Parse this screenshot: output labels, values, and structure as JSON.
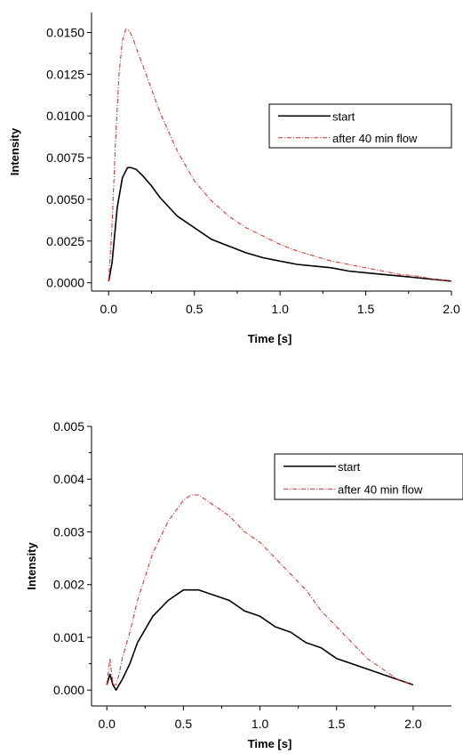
{
  "chart_data": [
    {
      "type": "line",
      "title": "",
      "xlabel": "Time [s]",
      "ylabel": "Intensity",
      "xlim": [
        -0.1,
        2.0
      ],
      "ylim": [
        -0.0005,
        0.0162
      ],
      "x_ticks": [
        "0.0",
        "0.5",
        "1.0",
        "1.5",
        "2.0"
      ],
      "y_ticks": [
        "0.0000",
        "0.0025",
        "0.0050",
        "0.0075",
        "0.0100",
        "0.0125",
        "0.0150"
      ],
      "grid": false,
      "legend_position": "top-right",
      "series": [
        {
          "name": "start",
          "color": "#000000",
          "line_style": "solid",
          "x": [
            0.0,
            0.02,
            0.05,
            0.08,
            0.11,
            0.13,
            0.16,
            0.2,
            0.25,
            0.3,
            0.4,
            0.5,
            0.6,
            0.7,
            0.8,
            0.9,
            1.0,
            1.1,
            1.2,
            1.3,
            1.4,
            1.5,
            1.6,
            1.7,
            1.8,
            1.9,
            2.0
          ],
          "y": [
            0.0001,
            0.0012,
            0.0045,
            0.0063,
            0.0069,
            0.0069,
            0.0068,
            0.0064,
            0.0058,
            0.0051,
            0.004,
            0.0033,
            0.0026,
            0.0022,
            0.0018,
            0.0015,
            0.0013,
            0.0011,
            0.001,
            0.0009,
            0.0007,
            0.0006,
            0.0005,
            0.0004,
            0.0003,
            0.0002,
            0.0001
          ]
        },
        {
          "name": "after 40 min flow",
          "color": "#e3221c",
          "line_style": "dash-dot",
          "x": [
            0.0,
            0.02,
            0.04,
            0.06,
            0.08,
            0.1,
            0.12,
            0.14,
            0.17,
            0.2,
            0.25,
            0.3,
            0.4,
            0.5,
            0.6,
            0.7,
            0.8,
            0.9,
            1.0,
            1.1,
            1.2,
            1.3,
            1.4,
            1.5,
            1.6,
            1.7,
            1.8,
            1.9,
            2.0
          ],
          "y": [
            0.0001,
            0.0035,
            0.0085,
            0.0125,
            0.0145,
            0.0152,
            0.0151,
            0.0147,
            0.0138,
            0.013,
            0.0116,
            0.0102,
            0.0079,
            0.0061,
            0.0049,
            0.004,
            0.0033,
            0.0028,
            0.0023,
            0.0019,
            0.0016,
            0.0013,
            0.0011,
            0.0009,
            0.0007,
            0.0005,
            0.0004,
            0.0002,
            0.0001
          ]
        }
      ]
    },
    {
      "type": "line",
      "title": "",
      "xlabel": "Time [s]",
      "ylabel": "Intensity",
      "xlim": [
        -0.1,
        2.25
      ],
      "ylim": [
        -0.0003,
        0.005
      ],
      "x_ticks": [
        "0.0",
        "0.5",
        "1.0",
        "1.5",
        "2.0"
      ],
      "y_ticks": [
        "0.000",
        "0.001",
        "0.002",
        "0.003",
        "0.004",
        "0.005"
      ],
      "grid": false,
      "legend_position": "top-right",
      "series": [
        {
          "name": "start",
          "color": "#000000",
          "line_style": "solid",
          "x": [
            0.0,
            0.02,
            0.04,
            0.06,
            0.08,
            0.1,
            0.15,
            0.2,
            0.3,
            0.4,
            0.5,
            0.6,
            0.7,
            0.8,
            0.9,
            1.0,
            1.1,
            1.2,
            1.3,
            1.4,
            1.5,
            1.6,
            1.7,
            1.8,
            1.9,
            2.0
          ],
          "y": [
            0.0001,
            0.0003,
            0.0001,
            0.0,
            0.0001,
            0.0002,
            0.0005,
            0.0009,
            0.0014,
            0.0017,
            0.0019,
            0.0019,
            0.0018,
            0.0017,
            0.0015,
            0.0014,
            0.0012,
            0.0011,
            0.0009,
            0.0008,
            0.0006,
            0.0005,
            0.0004,
            0.0003,
            0.0002,
            0.0001
          ]
        },
        {
          "name": "after 40 min flow",
          "color": "#e3221c",
          "line_style": "dash-dot",
          "x": [
            0.0,
            0.02,
            0.04,
            0.06,
            0.08,
            0.1,
            0.15,
            0.2,
            0.3,
            0.4,
            0.5,
            0.55,
            0.6,
            0.7,
            0.8,
            0.9,
            1.0,
            1.1,
            1.2,
            1.3,
            1.4,
            1.5,
            1.6,
            1.7,
            1.8,
            1.9,
            2.0
          ],
          "y": [
            0.0001,
            0.0006,
            0.0001,
            0.0001,
            0.0003,
            0.0006,
            0.0011,
            0.0017,
            0.0026,
            0.0032,
            0.0036,
            0.0037,
            0.0037,
            0.0035,
            0.0033,
            0.003,
            0.0028,
            0.0025,
            0.0022,
            0.0019,
            0.0015,
            0.0012,
            0.0009,
            0.0006,
            0.0004,
            0.0002,
            0.0001
          ]
        }
      ]
    }
  ]
}
